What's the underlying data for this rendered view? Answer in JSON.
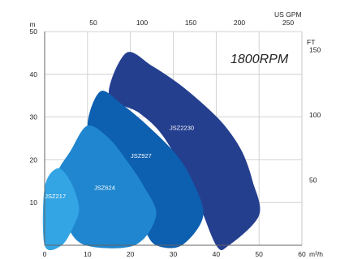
{
  "chart_data": {
    "type": "area",
    "title": "1800RPM",
    "x_axis": {
      "unit": "m³/h",
      "range": [
        0,
        60
      ],
      "ticks": [
        0,
        10,
        20,
        30,
        40,
        50,
        60
      ]
    },
    "y_axis": {
      "unit": "m",
      "range": [
        0,
        50
      ],
      "ticks": [
        10,
        20,
        30,
        40,
        50
      ]
    },
    "x_axis_top": {
      "unit": "US GPM",
      "ticks": [
        50,
        100,
        150,
        200,
        250
      ]
    },
    "y_axis_right": {
      "unit": "FT",
      "ticks": [
        50,
        100,
        150
      ]
    },
    "grid": true,
    "series": [
      {
        "name": "JSZ2230",
        "color": "#253f8f",
        "outline": [
          [
            15,
            35
          ],
          [
            19,
            45
          ],
          [
            25,
            42
          ],
          [
            31,
            38
          ],
          [
            37,
            33
          ],
          [
            42,
            28
          ],
          [
            46,
            22
          ],
          [
            48.5,
            15
          ],
          [
            50,
            7
          ],
          [
            43,
            0
          ],
          [
            40,
            0
          ],
          [
            35,
            12
          ],
          [
            28,
            25
          ],
          [
            22,
            31
          ]
        ]
      },
      {
        "name": "JSZ927",
        "color": "#0d5fb0",
        "outline": [
          [
            10,
            28
          ],
          [
            13,
            36
          ],
          [
            18,
            33
          ],
          [
            24,
            28
          ],
          [
            30,
            22
          ],
          [
            34,
            16
          ],
          [
            37,
            7
          ],
          [
            32,
            0
          ],
          [
            26,
            0
          ],
          [
            23,
            4
          ],
          [
            18,
            12
          ],
          [
            13,
            20
          ]
        ]
      },
      {
        "name": "JSZ624",
        "color": "#1f86cf",
        "outline": [
          [
            3,
            17
          ],
          [
            6,
            22
          ],
          [
            10,
            28
          ],
          [
            15,
            25
          ],
          [
            19,
            20
          ],
          [
            23,
            14
          ],
          [
            26,
            7
          ],
          [
            21,
            0
          ],
          [
            9.5,
            0
          ],
          [
            5,
            5
          ],
          [
            3,
            12
          ]
        ]
      },
      {
        "name": "JSZ217",
        "color": "#33a4e4",
        "outline": [
          [
            0,
            13.5
          ],
          [
            3,
            18
          ],
          [
            6,
            15
          ],
          [
            8,
            9
          ],
          [
            7,
            5
          ],
          [
            4,
            0
          ],
          [
            0,
            0
          ]
        ]
      }
    ],
    "labels": [
      {
        "text": "JSZ2230",
        "x": 32,
        "y": 27
      },
      {
        "text": "JSZ927",
        "x": 22.5,
        "y": 20.5
      },
      {
        "text": "JSZ624",
        "x": 14,
        "y": 13
      },
      {
        "text": "JSZ217",
        "x": 2.5,
        "y": 11
      }
    ]
  }
}
